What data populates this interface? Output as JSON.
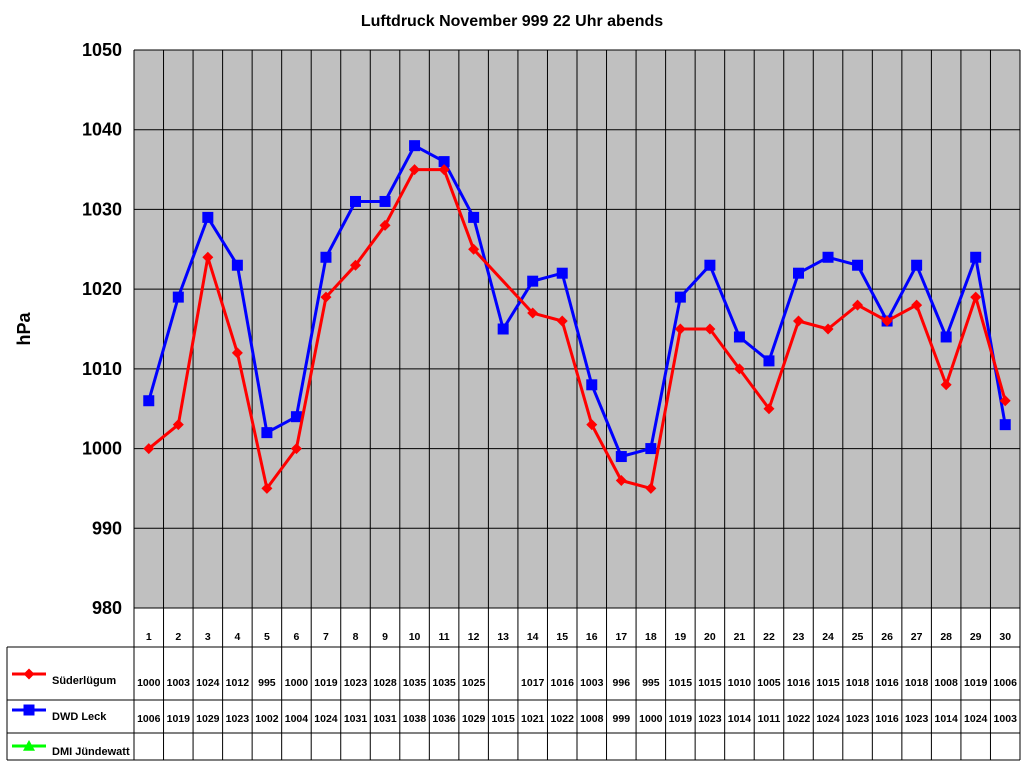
{
  "chart_data": {
    "type": "line",
    "title": "Luftdruck November 999 22 Uhr abends",
    "ylabel": "hPa",
    "xlabel": "",
    "ylim": [
      980,
      1050
    ],
    "yticks": [
      980,
      990,
      1000,
      1010,
      1020,
      1030,
      1040,
      1050
    ],
    "grid": true,
    "legend": "bottom-left data table",
    "categories": [
      "1",
      "2",
      "3",
      "4",
      "5",
      "6",
      "7",
      "8",
      "9",
      "10",
      "11",
      "12",
      "13",
      "14",
      "15",
      "16",
      "17",
      "18",
      "19",
      "20",
      "21",
      "22",
      "23",
      "24",
      "25",
      "26",
      "27",
      "28",
      "29",
      "30"
    ],
    "series": [
      {
        "name": "Süderlügum",
        "color": "#ff0000",
        "marker": "diamond",
        "values": [
          1000,
          1003,
          1024,
          1012,
          995,
          1000,
          1019,
          1023,
          1028,
          1035,
          1035,
          1025,
          null,
          1017,
          1016,
          1003,
          996,
          995,
          1015,
          1015,
          1010,
          1005,
          1016,
          1015,
          1018,
          1016,
          1018,
          1008,
          1019,
          1006
        ]
      },
      {
        "name": "DWD Leck",
        "color": "#0000ff",
        "marker": "square",
        "values": [
          1006,
          1019,
          1029,
          1023,
          1002,
          1004,
          1024,
          1031,
          1031,
          1038,
          1036,
          1029,
          1015,
          1021,
          1022,
          1008,
          999,
          1000,
          1019,
          1023,
          1014,
          1011,
          1022,
          1024,
          1023,
          1016,
          1023,
          1014,
          1024,
          1003
        ]
      },
      {
        "name": "DMI Jündewatt",
        "color": "#00ff00",
        "marker": "triangle",
        "values": [
          null,
          null,
          null,
          null,
          null,
          null,
          null,
          null,
          null,
          null,
          null,
          null,
          null,
          null,
          null,
          null,
          null,
          null,
          null,
          null,
          null,
          null,
          null,
          null,
          null,
          null,
          null,
          null,
          null,
          null
        ]
      }
    ]
  },
  "colors": {
    "plot_background": "#c0c0c0",
    "grid": "#000000"
  }
}
